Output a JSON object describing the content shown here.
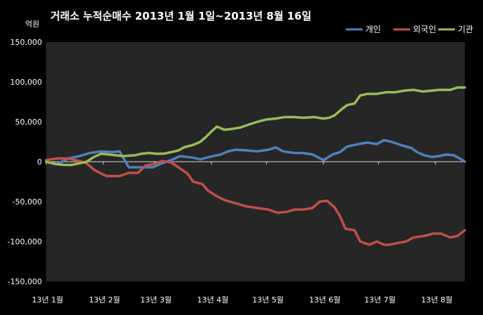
{
  "chart_data": {
    "type": "line",
    "title": "거래소 누적순매수 2013년 1월 1일~2013년 8월 16일",
    "y_unit": "억원",
    "ylim": [
      -150000,
      150000
    ],
    "y_ticks": [
      "150,000",
      "100,000",
      "50,000",
      "0",
      "-50,000",
      "-100,000",
      "-150,000"
    ],
    "y_tick_values": [
      150000,
      100000,
      50000,
      0,
      -50000,
      -100000,
      -150000
    ],
    "x_range_days": [
      0,
      228
    ],
    "x_ticks": [
      {
        "label": "13년 1월",
        "day": 0
      },
      {
        "label": "13년 2월",
        "day": 31
      },
      {
        "label": "13년 3월",
        "day": 59
      },
      {
        "label": "13년 4월",
        "day": 90
      },
      {
        "label": "13년 5월",
        "day": 120
      },
      {
        "label": "13년 6월",
        "day": 151
      },
      {
        "label": "13년 7월",
        "day": 181
      },
      {
        "label": "13년 8월",
        "day": 212
      }
    ],
    "grid": false,
    "legend_position": "top-right",
    "series": [
      {
        "name": "개인",
        "color": "#4f81bd",
        "points": [
          [
            0,
            0
          ],
          [
            6,
            -3000
          ],
          [
            12,
            4000
          ],
          [
            18,
            7000
          ],
          [
            24,
            11000
          ],
          [
            30,
            13000
          ],
          [
            36,
            12000
          ],
          [
            40,
            13000
          ],
          [
            45,
            -7000
          ],
          [
            52,
            -7000
          ],
          [
            58,
            -7000
          ],
          [
            62,
            -3000
          ],
          [
            68,
            2000
          ],
          [
            73,
            7000
          ],
          [
            80,
            5000
          ],
          [
            84,
            3000
          ],
          [
            89,
            6000
          ],
          [
            95,
            9000
          ],
          [
            99,
            13000
          ],
          [
            103,
            15000
          ],
          [
            110,
            14000
          ],
          [
            115,
            13000
          ],
          [
            121,
            15000
          ],
          [
            125,
            18000
          ],
          [
            129,
            13000
          ],
          [
            135,
            11000
          ],
          [
            140,
            11000
          ],
          [
            145,
            9000
          ],
          [
            151,
            2000
          ],
          [
            156,
            9000
          ],
          [
            160,
            12000
          ],
          [
            164,
            19000
          ],
          [
            170,
            22000
          ],
          [
            175,
            24000
          ],
          [
            180,
            22000
          ],
          [
            184,
            27000
          ],
          [
            188,
            25000
          ],
          [
            193,
            21000
          ],
          [
            199,
            17000
          ],
          [
            202,
            12000
          ],
          [
            206,
            8000
          ],
          [
            210,
            6000
          ],
          [
            214,
            7000
          ],
          [
            218,
            9000
          ],
          [
            222,
            8000
          ],
          [
            226,
            3000
          ],
          [
            228,
            0
          ]
        ]
      },
      {
        "name": "외국인",
        "color": "#c0504d",
        "points": [
          [
            0,
            2000
          ],
          [
            6,
            4000
          ],
          [
            12,
            4000
          ],
          [
            18,
            1000
          ],
          [
            22,
            -2000
          ],
          [
            26,
            -10000
          ],
          [
            30,
            -15000
          ],
          [
            33,
            -18000
          ],
          [
            40,
            -18000
          ],
          [
            45,
            -14000
          ],
          [
            50,
            -14000
          ],
          [
            54,
            -5000
          ],
          [
            60,
            -2000
          ],
          [
            63,
            1000
          ],
          [
            68,
            -1000
          ],
          [
            72,
            -7000
          ],
          [
            77,
            -15000
          ],
          [
            80,
            -25000
          ],
          [
            85,
            -28000
          ],
          [
            88,
            -36000
          ],
          [
            92,
            -42000
          ],
          [
            97,
            -48000
          ],
          [
            103,
            -52000
          ],
          [
            109,
            -56000
          ],
          [
            115,
            -58000
          ],
          [
            121,
            -60000
          ],
          [
            126,
            -64000
          ],
          [
            131,
            -63000
          ],
          [
            135,
            -60000
          ],
          [
            140,
            -60000
          ],
          [
            145,
            -58000
          ],
          [
            149,
            -50000
          ],
          [
            153,
            -49000
          ],
          [
            157,
            -57000
          ],
          [
            160,
            -68000
          ],
          [
            163,
            -84000
          ],
          [
            168,
            -86000
          ],
          [
            171,
            -100000
          ],
          [
            176,
            -104000
          ],
          [
            180,
            -100000
          ],
          [
            184,
            -104000
          ],
          [
            187,
            -104000
          ],
          [
            191,
            -102000
          ],
          [
            196,
            -100000
          ],
          [
            200,
            -95000
          ],
          [
            206,
            -93000
          ],
          [
            211,
            -90000
          ],
          [
            215,
            -90000
          ],
          [
            220,
            -95000
          ],
          [
            224,
            -93000
          ],
          [
            228,
            -86000
          ]
        ]
      },
      {
        "name": "기관",
        "color": "#9bbb59",
        "points": [
          [
            0,
            0
          ],
          [
            5,
            -3000
          ],
          [
            10,
            -4000
          ],
          [
            14,
            -4000
          ],
          [
            18,
            -2000
          ],
          [
            22,
            0
          ],
          [
            26,
            6000
          ],
          [
            30,
            10000
          ],
          [
            34,
            9000
          ],
          [
            38,
            8000
          ],
          [
            42,
            7000
          ],
          [
            48,
            8000
          ],
          [
            52,
            10000
          ],
          [
            56,
            11000
          ],
          [
            60,
            10000
          ],
          [
            64,
            10000
          ],
          [
            68,
            12000
          ],
          [
            72,
            14000
          ],
          [
            75,
            18000
          ],
          [
            80,
            21000
          ],
          [
            84,
            25000
          ],
          [
            87,
            31000
          ],
          [
            90,
            38000
          ],
          [
            93,
            44000
          ],
          [
            97,
            40000
          ],
          [
            101,
            41000
          ],
          [
            106,
            43000
          ],
          [
            111,
            47000
          ],
          [
            115,
            50000
          ],
          [
            120,
            53000
          ],
          [
            125,
            54000
          ],
          [
            130,
            56000
          ],
          [
            135,
            56000
          ],
          [
            140,
            55000
          ],
          [
            146,
            56000
          ],
          [
            151,
            54000
          ],
          [
            154,
            55000
          ],
          [
            157,
            58000
          ],
          [
            161,
            66000
          ],
          [
            164,
            71000
          ],
          [
            168,
            73000
          ],
          [
            171,
            83000
          ],
          [
            175,
            85000
          ],
          [
            180,
            85000
          ],
          [
            185,
            87000
          ],
          [
            190,
            87000
          ],
          [
            195,
            89000
          ],
          [
            200,
            90000
          ],
          [
            205,
            88000
          ],
          [
            210,
            89000
          ],
          [
            214,
            90000
          ],
          [
            220,
            90000
          ],
          [
            224,
            93000
          ],
          [
            228,
            93000
          ]
        ]
      }
    ]
  }
}
